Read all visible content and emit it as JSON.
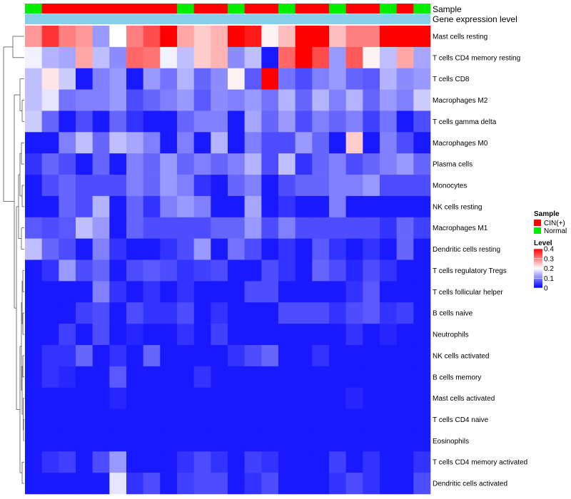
{
  "chart_data": {
    "type": "heatmap",
    "title": "",
    "annotation_tracks": [
      "Sample",
      "Gene expression level"
    ],
    "sample_groups": [
      "Normal",
      "CIN(+)",
      "CIN(+)",
      "CIN(+)",
      "CIN(+)",
      "CIN(+)",
      "CIN(+)",
      "CIN(+)",
      "CIN(+)",
      "Normal",
      "CIN(+)",
      "CIN(+)",
      "Normal",
      "CIN(+)",
      "CIN(+)",
      "Normal",
      "CIN(+)",
      "CIN(+)",
      "Normal",
      "CIN(+)",
      "CIN(+)",
      "Normal",
      "CIN(+)",
      "Normal"
    ],
    "rows": [
      "Mast cells resting",
      "T cells CD4 memory resting",
      "T cells CD8",
      "Macrophages M2",
      "T cells gamma delta",
      "Macrophages M0",
      "Plasma cells",
      "Monocytes",
      "NK cells resting",
      "Macrophages M1",
      "Dendritic cells resting",
      "T cells regulatory  Tregs",
      "T cells follicular helper",
      "B cells naive",
      "Neutrophils",
      "NK cells activated",
      "B cells memory",
      "Mast cells activated",
      "T cells CD4 naive",
      "Eosinophils",
      "T cells CD4 memory activated",
      "Dendritic cells activated"
    ],
    "values": [
      [
        0.28,
        0.36,
        0.3,
        0.28,
        0.12,
        0.2,
        0.3,
        0.34,
        0.4,
        0.27,
        0.24,
        0.26,
        0.4,
        0.38,
        0.21,
        0.25,
        0.4,
        0.4,
        0.25,
        0.3,
        0.3,
        0.4,
        0.4,
        0.4
      ],
      [
        0.19,
        0.14,
        0.13,
        0.27,
        0.15,
        0.11,
        0.32,
        0.31,
        0.19,
        0.15,
        0.24,
        0.26,
        0.11,
        0.15,
        0.02,
        0.32,
        0.4,
        0.34,
        0.12,
        0.33,
        0.21,
        0.15,
        0.27,
        0.13
      ],
      [
        0.15,
        0.22,
        0.16,
        0.02,
        0.1,
        0.12,
        0.02,
        0.12,
        0.09,
        0.14,
        0.08,
        0.11,
        0.21,
        0.07,
        0.4,
        0.09,
        0.06,
        0.1,
        0.12,
        0.08,
        0.07,
        0.14,
        0.11,
        0.12
      ],
      [
        0.15,
        0.18,
        0.09,
        0.1,
        0.1,
        0.12,
        0.06,
        0.08,
        0.1,
        0.12,
        0.07,
        0.11,
        0.1,
        0.12,
        0.09,
        0.14,
        0.08,
        0.14,
        0.1,
        0.14,
        0.08,
        0.12,
        0.1,
        0.16
      ],
      [
        0.16,
        0.08,
        0.02,
        0.06,
        0.02,
        0.08,
        0.04,
        0.02,
        0.02,
        0.08,
        0.1,
        0.1,
        0.02,
        0.13,
        0.08,
        0.12,
        0.06,
        0.1,
        0.08,
        0.1,
        0.05,
        0.09,
        0.02,
        0.06
      ],
      [
        0.02,
        0.02,
        0.1,
        0.15,
        0.08,
        0.15,
        0.13,
        0.1,
        0.02,
        0.1,
        0.02,
        0.14,
        0.02,
        0.1,
        0.06,
        0.06,
        0.12,
        0.08,
        0.02,
        0.24,
        0.02,
        0.1,
        0.06,
        0.02
      ],
      [
        0.04,
        0.08,
        0.06,
        0.02,
        0.08,
        0.02,
        0.1,
        0.08,
        0.12,
        0.08,
        0.1,
        0.08,
        0.1,
        0.14,
        0.06,
        0.15,
        0.04,
        0.08,
        0.1,
        0.06,
        0.08,
        0.1,
        0.12,
        0.08
      ],
      [
        0.02,
        0.06,
        0.08,
        0.06,
        0.06,
        0.06,
        0.1,
        0.08,
        0.12,
        0.1,
        0.04,
        0.02,
        0.08,
        0.1,
        0.02,
        0.06,
        0.08,
        0.08,
        0.1,
        0.1,
        0.12,
        0.06,
        0.06,
        0.06
      ],
      [
        0.02,
        0.02,
        0.08,
        0.06,
        0.14,
        0.02,
        0.08,
        0.04,
        0.1,
        0.12,
        0.1,
        0.02,
        0.02,
        0.13,
        0.02,
        0.04,
        0.02,
        0.02,
        0.1,
        0.02,
        0.02,
        0.02,
        0.02,
        0.02
      ],
      [
        0.07,
        0.06,
        0.07,
        0.15,
        0.12,
        0.02,
        0.08,
        0.06,
        0.06,
        0.06,
        0.06,
        0.08,
        0.08,
        0.12,
        0.06,
        0.1,
        0.06,
        0.06,
        0.06,
        0.06,
        0.06,
        0.04,
        0.08,
        0.05
      ],
      [
        0.15,
        0.08,
        0.06,
        0.02,
        0.1,
        0.04,
        0.02,
        0.02,
        0.04,
        0.06,
        0.12,
        0.02,
        0.09,
        0.06,
        0.02,
        0.04,
        0.02,
        0.07,
        0.04,
        0.02,
        0.04,
        0.02,
        0.08,
        0.02
      ],
      [
        0.02,
        0.04,
        0.12,
        0.06,
        0.08,
        0.02,
        0.06,
        0.07,
        0.06,
        0.04,
        0.05,
        0.06,
        0.02,
        0.02,
        0.06,
        0.04,
        0.02,
        0.08,
        0.06,
        0.03,
        0.06,
        0.04,
        0.02,
        0.02
      ],
      [
        0.02,
        0.02,
        0.02,
        0.02,
        0.1,
        0.04,
        0.02,
        0.04,
        0.02,
        0.04,
        0.02,
        0.02,
        0.02,
        0.06,
        0.06,
        0.02,
        0.02,
        0.02,
        0.02,
        0.04,
        0.07,
        0.02,
        0.02,
        0.02
      ],
      [
        0.02,
        0.02,
        0.02,
        0.05,
        0.06,
        0.02,
        0.06,
        0.04,
        0.04,
        0.06,
        0.02,
        0.04,
        0.02,
        0.02,
        0.02,
        0.06,
        0.06,
        0.06,
        0.04,
        0.06,
        0.07,
        0.04,
        0.05,
        0.02
      ],
      [
        0.02,
        0.02,
        0.05,
        0.02,
        0.06,
        0.02,
        0.03,
        0.02,
        0.02,
        0.04,
        0.02,
        0.05,
        0.02,
        0.02,
        0.02,
        0.02,
        0.02,
        0.02,
        0.02,
        0.04,
        0.02,
        0.03,
        0.02,
        0.02
      ],
      [
        0.02,
        0.04,
        0.04,
        0.08,
        0.02,
        0.04,
        0.02,
        0.08,
        0.02,
        0.02,
        0.02,
        0.02,
        0.04,
        0.06,
        0.08,
        0.02,
        0.02,
        0.04,
        0.02,
        0.02,
        0.02,
        0.02,
        0.02,
        0.02
      ],
      [
        0.02,
        0.04,
        0.03,
        0.02,
        0.02,
        0.07,
        0.02,
        0.02,
        0.02,
        0.02,
        0.04,
        0.02,
        0.02,
        0.02,
        0.02,
        0.02,
        0.02,
        0.02,
        0.02,
        0.02,
        0.02,
        0.02,
        0.02,
        0.02
      ],
      [
        0.02,
        0.02,
        0.02,
        0.02,
        0.02,
        0.03,
        0.02,
        0.02,
        0.02,
        0.02,
        0.02,
        0.02,
        0.02,
        0.02,
        0.02,
        0.02,
        0.02,
        0.02,
        0.02,
        0.03,
        0.02,
        0.02,
        0.02,
        0.02
      ],
      [
        0.02,
        0.02,
        0.02,
        0.02,
        0.02,
        0.02,
        0.02,
        0.02,
        0.02,
        0.02,
        0.02,
        0.02,
        0.02,
        0.02,
        0.02,
        0.02,
        0.02,
        0.02,
        0.02,
        0.02,
        0.02,
        0.02,
        0.02,
        0.02
      ],
      [
        0.02,
        0.02,
        0.02,
        0.02,
        0.02,
        0.02,
        0.02,
        0.02,
        0.02,
        0.02,
        0.02,
        0.02,
        0.02,
        0.02,
        0.02,
        0.02,
        0.02,
        0.02,
        0.02,
        0.02,
        0.02,
        0.02,
        0.02,
        0.02
      ],
      [
        0.02,
        0.04,
        0.05,
        0.02,
        0.06,
        0.12,
        0.02,
        0.02,
        0.02,
        0.04,
        0.06,
        0.04,
        0.02,
        0.05,
        0.04,
        0.02,
        0.02,
        0.02,
        0.05,
        0.02,
        0.04,
        0.02,
        0.02,
        0.04
      ],
      [
        0.02,
        0.02,
        0.02,
        0.02,
        0.02,
        0.18,
        0.04,
        0.06,
        0.02,
        0.05,
        0.06,
        0.06,
        0.02,
        0.04,
        0.06,
        0.02,
        0.02,
        0.02,
        0.04,
        0.06,
        0.04,
        0.02,
        0.02,
        0.06
      ]
    ],
    "legend": {
      "sample_title": "Sample",
      "sample_entries": [
        {
          "label": "CIN(+)",
          "color": "#ff0000"
        },
        {
          "label": "Normal",
          "color": "#00ee00"
        }
      ],
      "level_title": "Level",
      "level_ticks": [
        "0.4",
        "0.3",
        "0.2",
        "0.1",
        "0"
      ],
      "level_tick_values": [
        0.4,
        0.3,
        0.2,
        0.1,
        0
      ],
      "placement": "right"
    },
    "color_scale": {
      "low": "#0000ff",
      "mid": "#ffffff",
      "high": "#ff0000",
      "min": 0,
      "mid_value": 0.2,
      "max": 0.4
    },
    "gene_expression_bar_color": "#87ceeb"
  }
}
